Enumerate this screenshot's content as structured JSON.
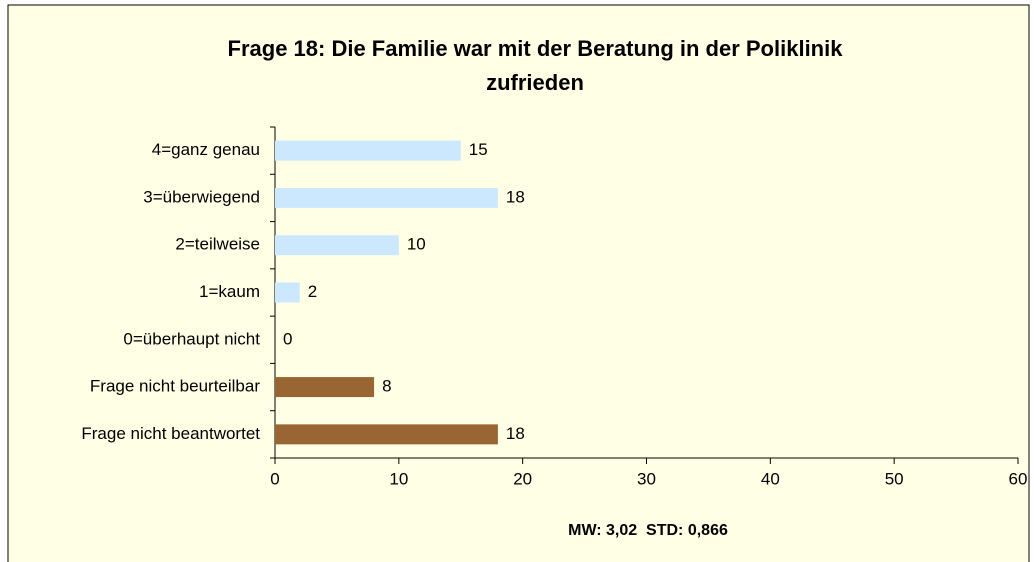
{
  "chart_data": {
    "type": "bar",
    "orientation": "horizontal",
    "title": [
      "Frage 18: Die Familie war mit der Beratung in der Poliklinik",
      "zufrieden"
    ],
    "categories": [
      "4=ganz genau",
      "3=überwiegend",
      "2=teilweise",
      "1=kaum",
      "0=überhaupt nicht",
      "Frage nicht beurteilbar",
      "Frage nicht beantwortet"
    ],
    "values": [
      15,
      18,
      10,
      2,
      0,
      8,
      18
    ],
    "colors": [
      "#cce8ff",
      "#cce8ff",
      "#cce8ff",
      "#cce8ff",
      "#cce8ff",
      "#996633",
      "#996633"
    ],
    "xlim": [
      0,
      60
    ],
    "xticks": [
      0,
      10,
      20,
      30,
      40,
      50,
      60
    ],
    "annotation": "MW: 3,02  STD: 0,866",
    "grid": false
  }
}
